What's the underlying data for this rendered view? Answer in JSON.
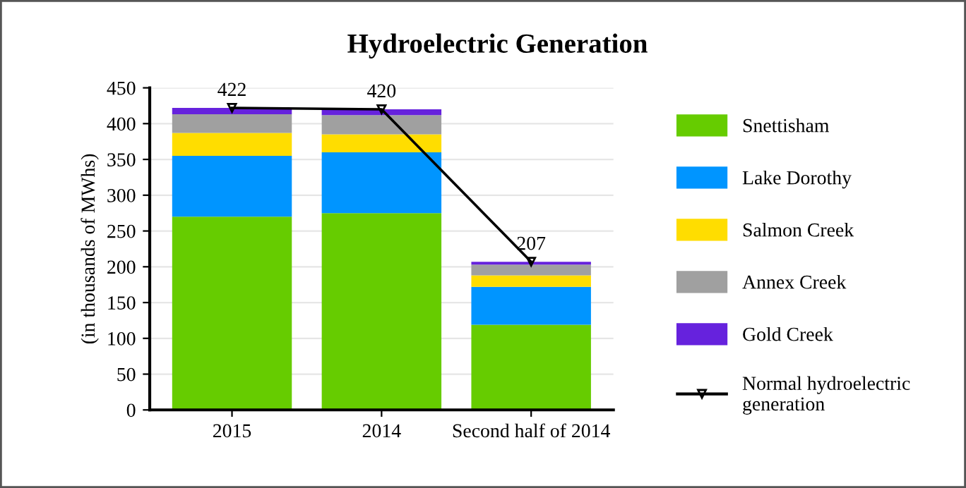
{
  "chart_data": {
    "type": "bar",
    "title": "Hydroelectric Generation",
    "ylabel": "(in thousands of MWhs)",
    "categories": [
      "2015",
      "2014",
      "Second half of 2014"
    ],
    "stacked": true,
    "ylim": [
      0,
      450
    ],
    "yticks": [
      0,
      50,
      100,
      150,
      200,
      250,
      300,
      350,
      400,
      450
    ],
    "grid": "y",
    "legend": "right",
    "series": [
      {
        "name": "Snettisham",
        "color": "#66cc00",
        "values": [
          270,
          275,
          119
        ]
      },
      {
        "name": "Lake Dorothy",
        "color": "#0095ff",
        "values": [
          85,
          85,
          53
        ]
      },
      {
        "name": "Salmon Creek",
        "color": "#ffdd00",
        "values": [
          32,
          25,
          16
        ]
      },
      {
        "name": "Annex Creek",
        "color": "#a0a0a0",
        "values": [
          26,
          27,
          15
        ]
      },
      {
        "name": "Gold Creek",
        "color": "#6622dd",
        "values": [
          9,
          8,
          4
        ]
      },
      {
        "name": "Normal hydroelectric generation",
        "type": "line",
        "color": "#000000",
        "values": [
          422,
          420,
          207
        ],
        "marker": "triangle",
        "line_style": "solid",
        "data_labels": true
      }
    ]
  }
}
